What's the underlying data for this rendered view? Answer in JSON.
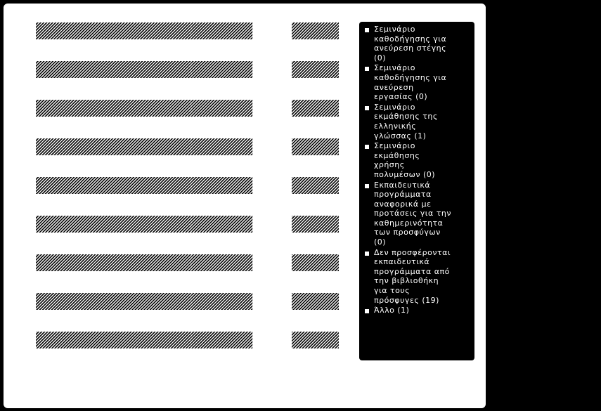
{
  "chart_data": {
    "type": "bar",
    "orientation": "horizontal",
    "stacked": true,
    "pattern": "diagonal-hatch",
    "colors": {
      "background": "#000000",
      "panel": "#ffffff",
      "bar": "#000000",
      "legend_bg": "#000000",
      "legend_text": "#ffffff"
    },
    "categories": [
      "",
      "",
      "",
      "",
      "",
      "",
      "",
      "",
      ""
    ],
    "series": [
      {
        "name": "",
        "values": [
          3.3,
          3.3,
          3.3,
          3.3,
          3.3,
          3.3,
          3.3,
          3.3,
          3.3
        ]
      },
      {
        "name": "",
        "values": [
          1.3,
          1.3,
          1.3,
          1.3,
          1.3,
          1.3,
          1.3,
          1.3,
          1.3
        ]
      },
      {
        "name": "",
        "values": [
          1.0,
          1.0,
          1.0,
          1.0,
          1.0,
          1.0,
          1.0,
          1.0,
          1.0
        ]
      }
    ],
    "gap_before_series": 2,
    "legend_position": "right",
    "legend": [
      "Σεμινάριο καθοδήγησης για ανεύρεση στέγης (0)",
      "Σεμινάριο καθοδήγησης για ανεύρεση εργασίας (0)",
      "Σεμινάριο εκμάθησης της ελληνικής γλώσσας (1)",
      "Σεμινάριο εκμάθησης χρήσης πολυμέσων (0)",
      "Εκπαιδευτικά προγράμματα αναφορικά με προτάσεις για την καθημερινότητα των προσφύγων (0)",
      "Δεν προσφέρονται εκπαιδευτικά προγράμματα από την βιβλιοθήκη για τους πρόσφυγες (19)",
      "Άλλο (1)"
    ]
  }
}
